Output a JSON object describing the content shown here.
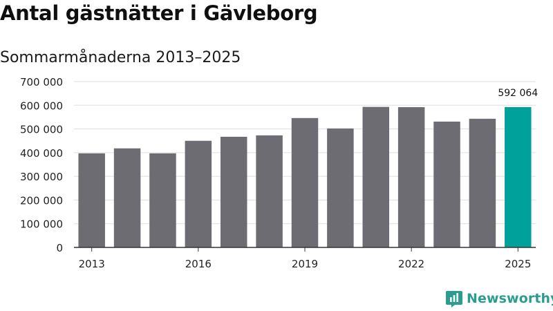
{
  "title": "Antal gästnätter i Gävleborg",
  "subtitle": "Sommarmånaderna 2013–2025",
  "brand": {
    "name": "Newsworthy",
    "icon": "newsworthy-logo-icon",
    "color": "#2a9d8f"
  },
  "chart_data": {
    "type": "bar",
    "categories": [
      "2013",
      "2014",
      "2015",
      "2016",
      "2017",
      "2018",
      "2019",
      "2020",
      "2021",
      "2022",
      "2023",
      "2024",
      "2025"
    ],
    "values": [
      397000,
      418000,
      397000,
      450000,
      467000,
      473000,
      546000,
      502000,
      593000,
      592000,
      531000,
      543000,
      592064
    ],
    "ylim": [
      0,
      700000
    ],
    "yticks": [
      0,
      100000,
      200000,
      300000,
      400000,
      500000,
      600000,
      700000
    ],
    "ytick_labels": [
      "0",
      "100 000",
      "200 000",
      "300 000",
      "400 000",
      "500 000",
      "600 000",
      "700 000"
    ],
    "xtick_labels": [
      "2013",
      "2016",
      "2019",
      "2022",
      "2025"
    ],
    "data_labels": [
      {
        "category": "2025",
        "text": "592 064"
      }
    ],
    "colors": {
      "default": "#6d6c72",
      "highlight": "#00a19a",
      "grid": "#dddddd",
      "axis": "#333333"
    },
    "highlight_category": "2025",
    "grid": true
  }
}
